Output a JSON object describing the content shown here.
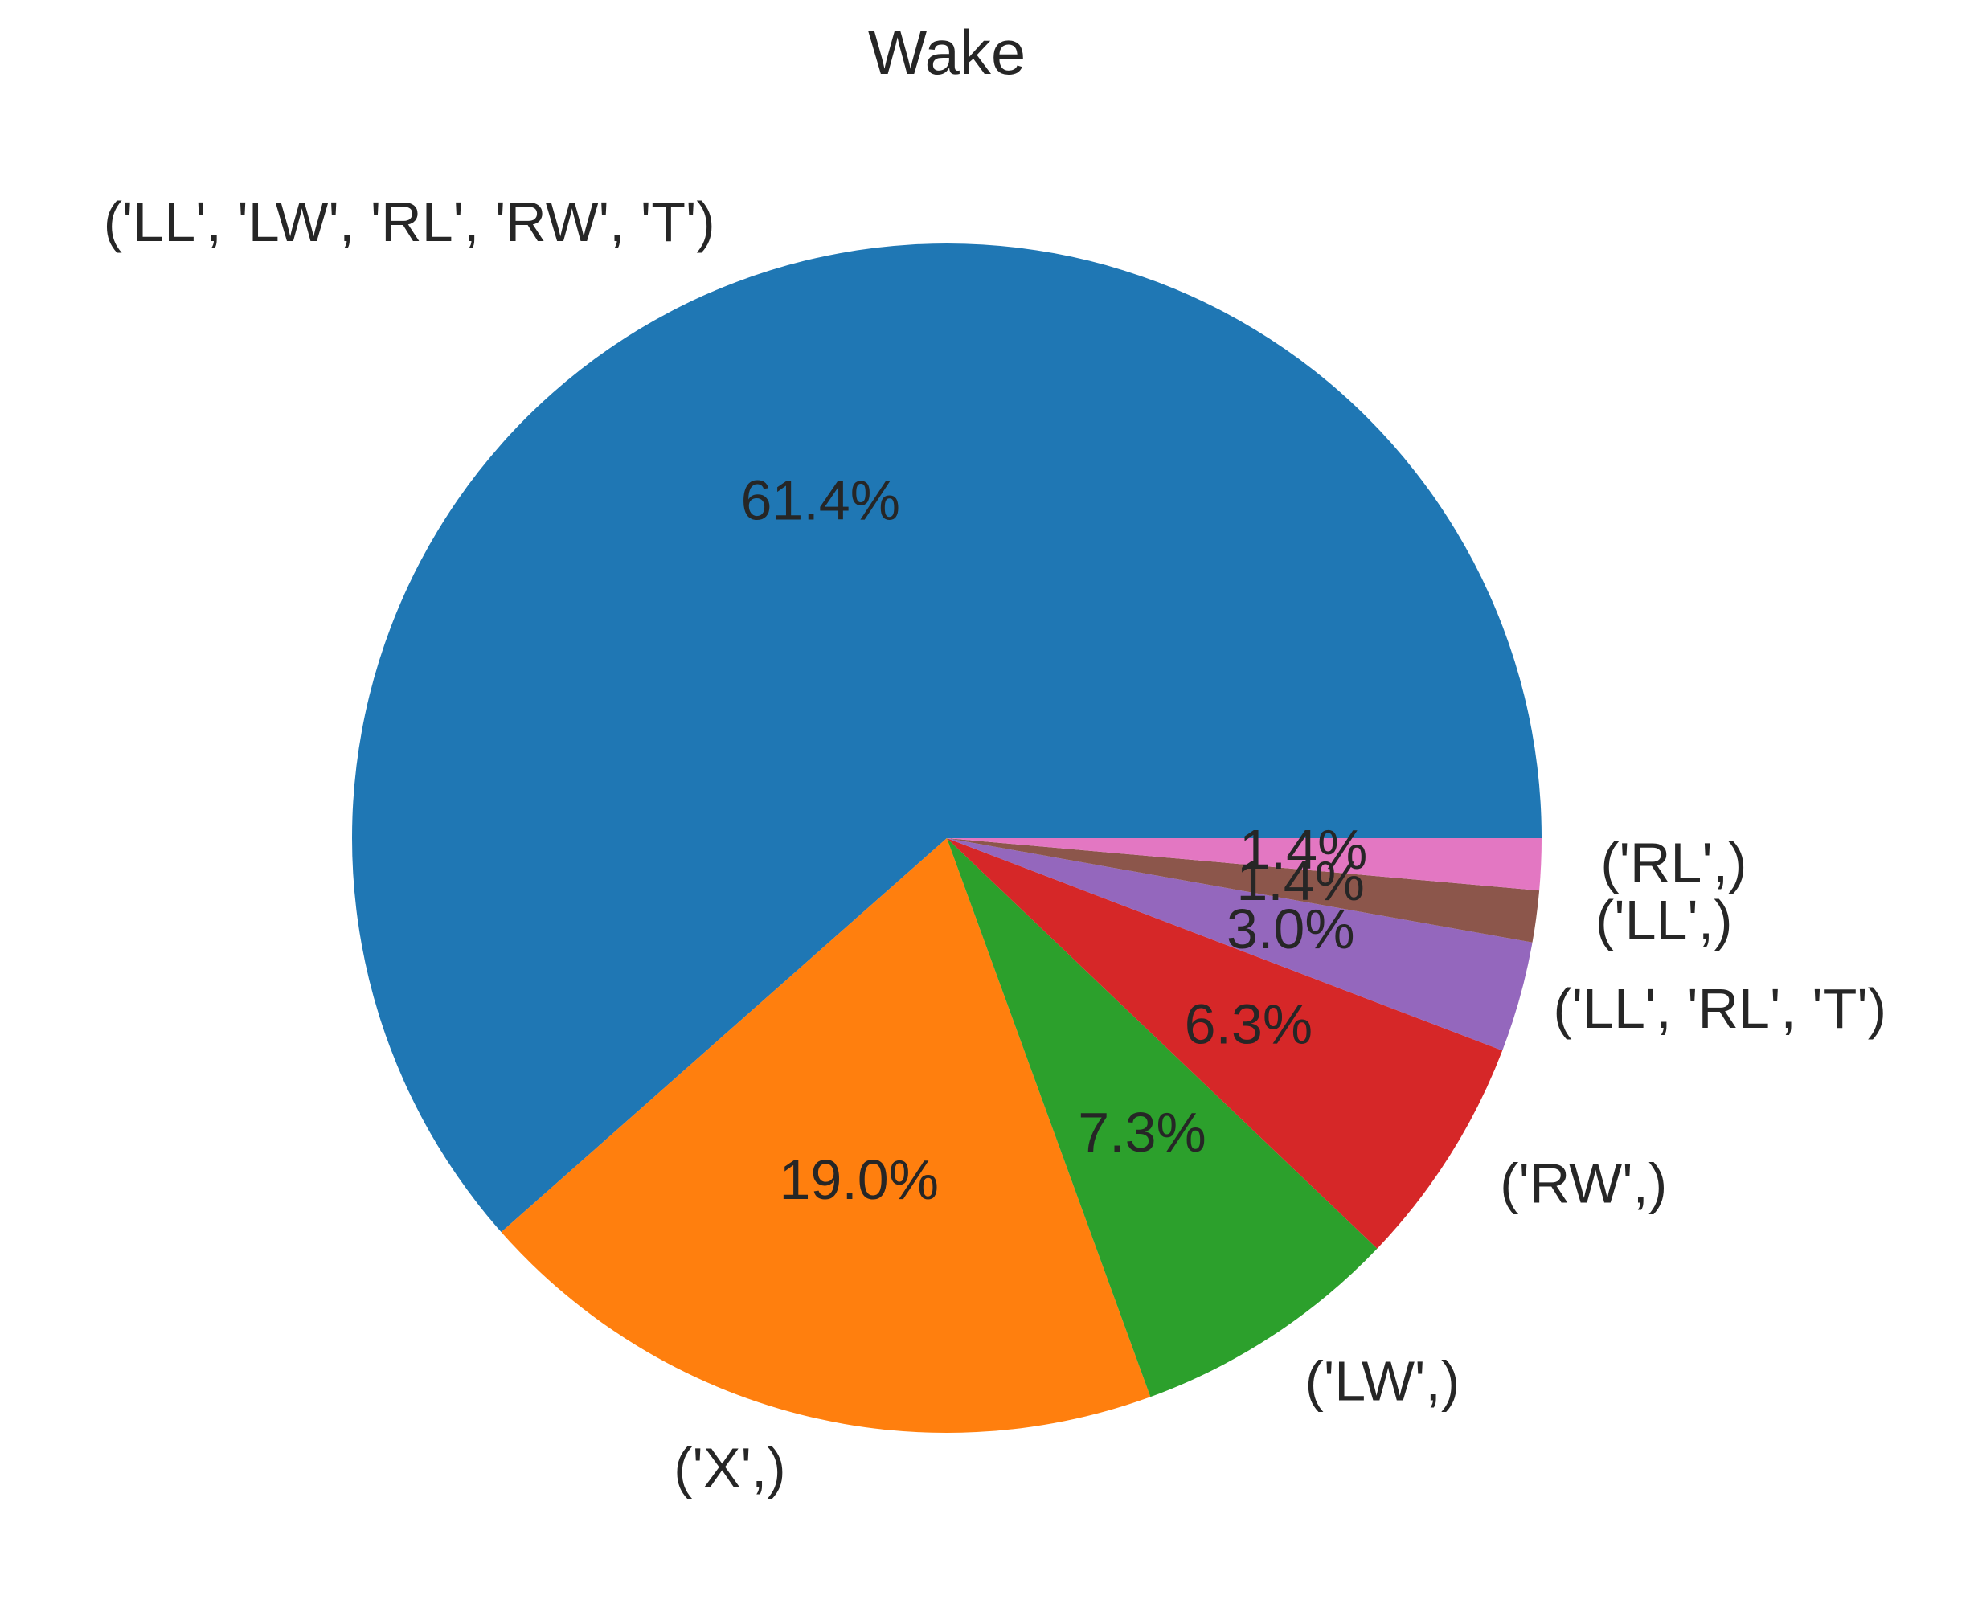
{
  "chart_data": {
    "type": "pie",
    "title": "Wake",
    "slices": [
      {
        "label": "('LL', 'LW', 'RL', 'RW', 'T')",
        "value": 61.4,
        "pct_text": "61.4%",
        "color": "#1f77b4"
      },
      {
        "label": "('X',)",
        "value": 19.0,
        "pct_text": "19.0%",
        "color": "#ff7f0e"
      },
      {
        "label": "('LW',)",
        "value": 7.3,
        "pct_text": "7.3%",
        "color": "#2ca02c"
      },
      {
        "label": "('RW',)",
        "value": 6.3,
        "pct_text": "6.3%",
        "color": "#d62728"
      },
      {
        "label": "('LL', 'RL', 'T')",
        "value": 3.0,
        "pct_text": "3.0%",
        "color": "#9467bd"
      },
      {
        "label": "('LL',)",
        "value": 1.4,
        "pct_text": "1.4%",
        "color": "#8c564b"
      },
      {
        "label": "('RL',)",
        "value": 1.4,
        "pct_text": "1.4%",
        "color": "#e377c2"
      }
    ],
    "start_angle_deg": 0,
    "direction": "counterclockwise"
  }
}
